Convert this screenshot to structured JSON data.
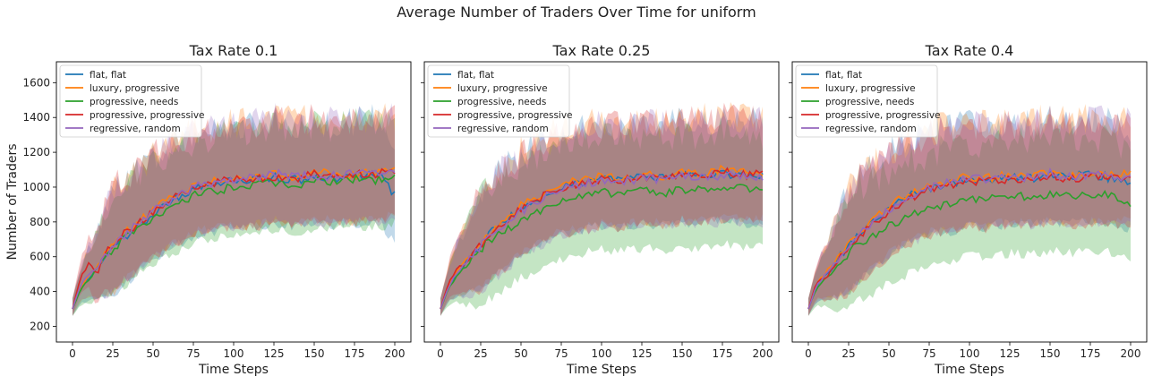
{
  "figure": {
    "suptitle": "Average Number of Traders Over Time for uniform"
  },
  "colors": {
    "flat_flat": "#1f77b4",
    "luxury_progressive": "#ff7f0e",
    "progressive_needs": "#2ca02c",
    "progressive_progressive": "#d62728",
    "regressive_random": "#9467bd"
  },
  "chart_data": [
    {
      "type": "line",
      "title": "Tax Rate 0.1",
      "xlabel": "Time Steps",
      "ylabel": "Number of Traders",
      "xlim": [
        -10,
        210
      ],
      "ylim": [
        110,
        1720
      ],
      "xticks": [
        0,
        25,
        50,
        75,
        100,
        125,
        150,
        175,
        200
      ],
      "yticks": [
        200,
        400,
        600,
        800,
        1000,
        1200,
        1400,
        1600
      ],
      "grid": false,
      "legend": "top-left",
      "bands": "shaded ±1 std envelope per series",
      "series": [
        {
          "name": "flat, flat",
          "color": "#1f77b4",
          "x": [
            0,
            5,
            10,
            15,
            20,
            25,
            30,
            40,
            50,
            60,
            75,
            90,
            100,
            110,
            125,
            140,
            150,
            160,
            175,
            190,
            200
          ],
          "y": [
            300,
            420,
            480,
            530,
            600,
            650,
            700,
            770,
            850,
            910,
            990,
            1020,
            1050,
            1040,
            1060,
            1040,
            1070,
            1050,
            1060,
            1080,
            950
          ]
        },
        {
          "name": "luxury, progressive",
          "color": "#ff7f0e",
          "x": [
            0,
            5,
            10,
            15,
            20,
            25,
            30,
            40,
            50,
            60,
            75,
            90,
            100,
            110,
            125,
            140,
            150,
            160,
            175,
            190,
            200
          ],
          "y": [
            300,
            430,
            490,
            540,
            610,
            660,
            720,
            790,
            870,
            930,
            1010,
            1040,
            1060,
            1050,
            1070,
            1060,
            1090,
            1080,
            1070,
            1090,
            1120
          ]
        },
        {
          "name": "progressive, needs",
          "color": "#2ca02c",
          "x": [
            0,
            5,
            10,
            15,
            20,
            25,
            30,
            40,
            50,
            60,
            75,
            90,
            100,
            110,
            125,
            140,
            150,
            160,
            175,
            190,
            200
          ],
          "y": [
            300,
            410,
            470,
            520,
            590,
            640,
            690,
            760,
            830,
            880,
            950,
            980,
            1000,
            1010,
            1030,
            1010,
            1040,
            1030,
            1050,
            1040,
            1060
          ]
        },
        {
          "name": "progressive, progressive",
          "color": "#d62728",
          "x": [
            0,
            5,
            10,
            15,
            20,
            25,
            30,
            40,
            50,
            60,
            75,
            90,
            100,
            110,
            125,
            140,
            150,
            160,
            175,
            190,
            200
          ],
          "y": [
            300,
            480,
            560,
            500,
            620,
            660,
            720,
            780,
            860,
            920,
            1000,
            1030,
            1050,
            1040,
            1060,
            1050,
            1080,
            1060,
            1070,
            1080,
            1100
          ]
        },
        {
          "name": "regressive, random",
          "color": "#9467bd",
          "x": [
            0,
            5,
            10,
            15,
            20,
            25,
            30,
            40,
            50,
            60,
            75,
            90,
            100,
            110,
            125,
            140,
            150,
            160,
            175,
            190,
            200
          ],
          "y": [
            300,
            440,
            500,
            540,
            600,
            660,
            710,
            780,
            860,
            920,
            1000,
            1030,
            1040,
            1050,
            1080,
            1060,
            1070,
            1060,
            1080,
            1070,
            1090
          ]
        }
      ]
    },
    {
      "type": "line",
      "title": "Tax Rate 0.25",
      "xlabel": "Time Steps",
      "ylabel": "",
      "xlim": [
        -10,
        210
      ],
      "ylim": [
        110,
        1720
      ],
      "xticks": [
        0,
        25,
        50,
        75,
        100,
        125,
        150,
        175,
        200
      ],
      "yticks": [
        200,
        400,
        600,
        800,
        1000,
        1200,
        1400,
        1600
      ],
      "grid": false,
      "legend": "top-left",
      "bands": "shaded ±1 std envelope per series",
      "series": [
        {
          "name": "flat, flat",
          "color": "#1f77b4",
          "x": [
            0,
            5,
            10,
            15,
            20,
            25,
            30,
            40,
            50,
            60,
            75,
            90,
            100,
            110,
            125,
            140,
            150,
            160,
            175,
            190,
            200
          ],
          "y": [
            300,
            430,
            500,
            550,
            620,
            670,
            730,
            810,
            880,
            930,
            1000,
            1030,
            1050,
            1040,
            1060,
            1050,
            1070,
            1060,
            1080,
            1060,
            1070
          ]
        },
        {
          "name": "luxury, progressive",
          "color": "#ff7f0e",
          "x": [
            0,
            5,
            10,
            15,
            20,
            25,
            30,
            40,
            50,
            60,
            75,
            90,
            100,
            110,
            125,
            140,
            150,
            160,
            175,
            190,
            200
          ],
          "y": [
            300,
            440,
            510,
            560,
            630,
            680,
            740,
            820,
            890,
            950,
            1020,
            1040,
            1060,
            1050,
            1070,
            1060,
            1080,
            1070,
            1100,
            1080,
            1090
          ]
        },
        {
          "name": "progressive, needs",
          "color": "#2ca02c",
          "x": [
            0,
            5,
            10,
            15,
            20,
            25,
            30,
            40,
            50,
            60,
            75,
            90,
            100,
            110,
            125,
            140,
            150,
            160,
            175,
            190,
            200
          ],
          "y": [
            300,
            420,
            490,
            540,
            590,
            640,
            690,
            750,
            810,
            860,
            920,
            950,
            970,
            960,
            980,
            970,
            990,
            980,
            1000,
            990,
            990
          ]
        },
        {
          "name": "progressive, progressive",
          "color": "#d62728",
          "x": [
            0,
            5,
            10,
            15,
            20,
            25,
            30,
            40,
            50,
            60,
            75,
            90,
            100,
            110,
            125,
            140,
            150,
            160,
            175,
            190,
            200
          ],
          "y": [
            300,
            450,
            520,
            560,
            620,
            670,
            730,
            800,
            870,
            930,
            1000,
            1020,
            1050,
            1040,
            1060,
            1050,
            1080,
            1060,
            1090,
            1070,
            1080
          ]
        },
        {
          "name": "regressive, random",
          "color": "#9467bd",
          "x": [
            0,
            5,
            10,
            15,
            20,
            25,
            30,
            40,
            50,
            60,
            75,
            90,
            100,
            110,
            125,
            140,
            150,
            160,
            175,
            190,
            200
          ],
          "y": [
            300,
            430,
            500,
            550,
            610,
            660,
            720,
            790,
            860,
            920,
            990,
            1020,
            1040,
            1030,
            1050,
            1040,
            1070,
            1050,
            1070,
            1060,
            1060
          ]
        }
      ]
    },
    {
      "type": "line",
      "title": "Tax Rate 0.4",
      "xlabel": "Time Steps",
      "ylabel": "",
      "xlim": [
        -10,
        210
      ],
      "ylim": [
        110,
        1720
      ],
      "xticks": [
        0,
        25,
        50,
        75,
        100,
        125,
        150,
        175,
        200
      ],
      "yticks": [
        200,
        400,
        600,
        800,
        1000,
        1200,
        1400,
        1600
      ],
      "grid": false,
      "legend": "top-left",
      "bands": "shaded ±1 std envelope per series",
      "series": [
        {
          "name": "flat, flat",
          "color": "#1f77b4",
          "x": [
            0,
            5,
            10,
            15,
            20,
            25,
            30,
            40,
            50,
            60,
            75,
            90,
            100,
            110,
            125,
            140,
            150,
            160,
            175,
            190,
            200
          ],
          "y": [
            300,
            430,
            490,
            540,
            610,
            660,
            720,
            800,
            880,
            940,
            1000,
            1020,
            1050,
            1040,
            1060,
            1050,
            1080,
            1060,
            1070,
            1050,
            1030
          ]
        },
        {
          "name": "luxury, progressive",
          "color": "#ff7f0e",
          "x": [
            0,
            5,
            10,
            15,
            20,
            25,
            30,
            40,
            50,
            60,
            75,
            90,
            100,
            110,
            125,
            140,
            150,
            160,
            175,
            190,
            200
          ],
          "y": [
            300,
            440,
            500,
            550,
            620,
            670,
            730,
            810,
            890,
            950,
            1010,
            1040,
            1060,
            1050,
            1070,
            1060,
            1090,
            1070,
            1080,
            1070,
            1080
          ]
        },
        {
          "name": "progressive, needs",
          "color": "#2ca02c",
          "x": [
            0,
            5,
            10,
            15,
            20,
            25,
            30,
            40,
            50,
            60,
            75,
            90,
            100,
            110,
            125,
            140,
            150,
            160,
            175,
            190,
            200
          ],
          "y": [
            300,
            420,
            470,
            510,
            570,
            620,
            670,
            720,
            780,
            820,
            880,
            910,
            940,
            930,
            950,
            940,
            960,
            950,
            960,
            950,
            910
          ]
        },
        {
          "name": "progressive, progressive",
          "color": "#d62728",
          "x": [
            0,
            5,
            10,
            15,
            20,
            25,
            30,
            40,
            50,
            60,
            75,
            90,
            100,
            110,
            125,
            140,
            150,
            160,
            175,
            190,
            200
          ],
          "y": [
            300,
            450,
            480,
            520,
            600,
            650,
            710,
            790,
            860,
            920,
            990,
            1020,
            1040,
            1030,
            1050,
            1040,
            1070,
            1050,
            1060,
            1050,
            1060
          ]
        },
        {
          "name": "regressive, random",
          "color": "#9467bd",
          "x": [
            0,
            5,
            10,
            15,
            20,
            25,
            30,
            40,
            50,
            60,
            75,
            90,
            100,
            110,
            125,
            140,
            150,
            160,
            175,
            190,
            200
          ],
          "y": [
            300,
            430,
            490,
            540,
            600,
            650,
            710,
            790,
            870,
            930,
            1000,
            1030,
            1050,
            1040,
            1060,
            1050,
            1080,
            1060,
            1070,
            1060,
            1050
          ]
        }
      ]
    }
  ]
}
